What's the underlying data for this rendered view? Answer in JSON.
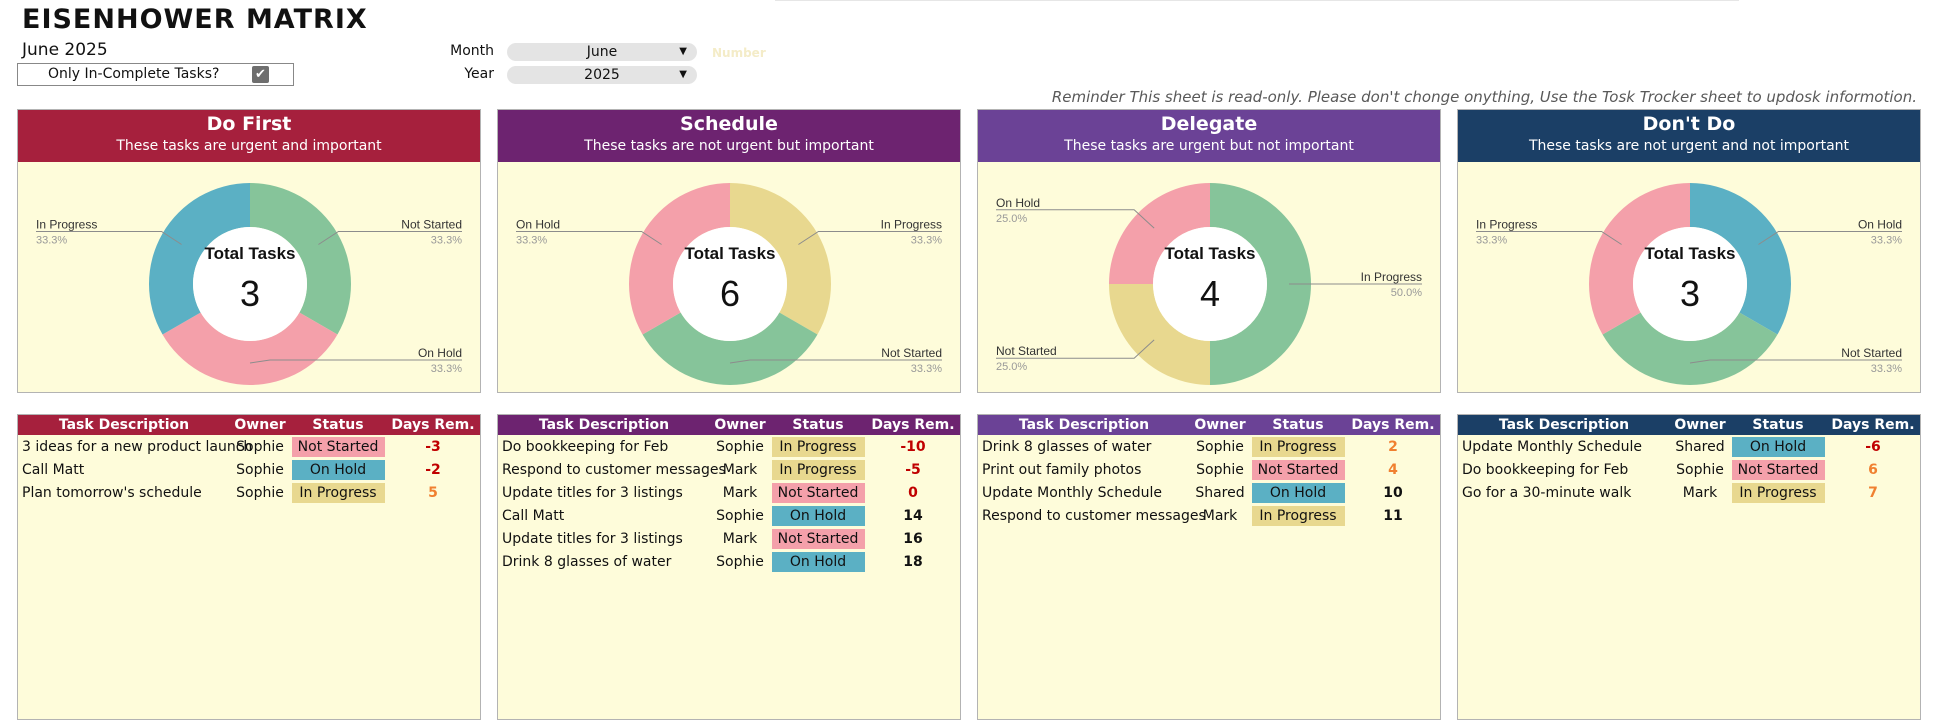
{
  "header": {
    "title": "EISENHOWER MATRIX",
    "subtitle": "June 2025",
    "toggle_label": "Only In-Complete Tasks?",
    "toggle_checked": true,
    "month_label": "Month",
    "month_value": "June",
    "year_label": "Year",
    "year_value": "2025",
    "faint_text": "Number",
    "reminder": "Reminder This sheet is read-only. Please don't chonge onything, Use the Tosk Trocker sheet to updosk informotion."
  },
  "status_colors": {
    "Not Started": "#f4a0aa",
    "On Hold": "#5bb0c4",
    "In Progress": "#e8d88f"
  },
  "chart_status_colors": {
    "Not Started": "#86c49a",
    "On Hold": "#f4a0aa",
    "In Progress": "#5bb0c4"
  },
  "days_colors": {
    "negative": "#c00000",
    "small": "#f08030",
    "large": "#111111"
  },
  "table_headers": {
    "desc": "Task Description",
    "owner": "Owner",
    "status": "Status",
    "days": "Days Rem."
  },
  "quadrants": [
    {
      "name": "Do First",
      "desc": "These tasks are urgent and important",
      "color": "#a6203d",
      "total_label": "Total Tasks",
      "total": "3",
      "chart_data": {
        "type": "pie",
        "slices": [
          {
            "label": "Not Started",
            "value": 33.3,
            "pct": "33.3%",
            "color": "#86c49a"
          },
          {
            "label": "On Hold",
            "value": 33.3,
            "pct": "33.3%",
            "color": "#f4a0aa"
          },
          {
            "label": "In Progress",
            "value": 33.3,
            "pct": "33.3%",
            "color": "#5bb0c4"
          }
        ]
      },
      "tasks": [
        {
          "desc": "3 ideas for a new product launch",
          "owner": "Sophie",
          "status": "Not Started",
          "days": "-3"
        },
        {
          "desc": "Call Matt",
          "owner": "Sophie",
          "status": "On Hold",
          "days": "-2"
        },
        {
          "desc": "Plan tomorrow's schedule",
          "owner": "Sophie",
          "status": "In Progress",
          "days": "5"
        }
      ]
    },
    {
      "name": "Schedule",
      "desc": "These tasks are not urgent but important",
      "color": "#6d2370",
      "total_label": "Total Tasks",
      "total": "6",
      "chart_data": {
        "type": "pie",
        "slices": [
          {
            "label": "In Progress",
            "value": 33.3,
            "pct": "33.3%",
            "color": "#e8d88f"
          },
          {
            "label": "Not Started",
            "value": 33.3,
            "pct": "33.3%",
            "color": "#86c49a"
          },
          {
            "label": "On Hold",
            "value": 33.3,
            "pct": "33.3%",
            "color": "#f4a0aa"
          }
        ]
      },
      "tasks": [
        {
          "desc": "Do bookkeeping for Feb",
          "owner": "Sophie",
          "status": "In Progress",
          "days": "-10"
        },
        {
          "desc": "Respond to customer messages",
          "owner": "Mark",
          "status": "In Progress",
          "days": "-5"
        },
        {
          "desc": "Update titles for 3 listings",
          "owner": "Mark",
          "status": "Not Started",
          "days": "0"
        },
        {
          "desc": "Call Matt",
          "owner": "Sophie",
          "status": "On Hold",
          "days": "14"
        },
        {
          "desc": "Update titles for 3 listings",
          "owner": "Mark",
          "status": "Not Started",
          "days": "16"
        },
        {
          "desc": "Drink 8 glasses of water",
          "owner": "Sophie",
          "status": "On Hold",
          "days": "18"
        }
      ]
    },
    {
      "name": "Delegate",
      "desc": "These tasks are urgent but not important",
      "color": "#6b4296",
      "total_label": "Total Tasks",
      "total": "4",
      "chart_data": {
        "type": "pie",
        "slices": [
          {
            "label": "In Progress",
            "value": 50.0,
            "pct": "50.0%",
            "color": "#86c49a"
          },
          {
            "label": "Not Started",
            "value": 25.0,
            "pct": "25.0%",
            "color": "#e8d88f"
          },
          {
            "label": "On Hold",
            "value": 25.0,
            "pct": "25.0%",
            "color": "#f4a0aa"
          }
        ]
      },
      "tasks": [
        {
          "desc": "Drink 8 glasses of water",
          "owner": "Sophie",
          "status": "In Progress",
          "days": "2"
        },
        {
          "desc": "Print out family photos",
          "owner": "Sophie",
          "status": "Not Started",
          "days": "4"
        },
        {
          "desc": "Update Monthly Schedule",
          "owner": "Shared",
          "status": "On Hold",
          "days": "10"
        },
        {
          "desc": "Respond to customer messages",
          "owner": "Mark",
          "status": "In Progress",
          "days": "11"
        }
      ]
    },
    {
      "name": "Don't Do",
      "desc": "These tasks are not urgent and not important",
      "color": "#1b3f66",
      "total_label": "Total Tasks",
      "total": "3",
      "chart_data": {
        "type": "pie",
        "slices": [
          {
            "label": "On Hold",
            "value": 33.3,
            "pct": "33.3%",
            "color": "#5bb0c4"
          },
          {
            "label": "Not Started",
            "value": 33.3,
            "pct": "33.3%",
            "color": "#86c49a"
          },
          {
            "label": "In Progress",
            "value": 33.3,
            "pct": "33.3%",
            "color": "#f4a0aa"
          }
        ]
      },
      "tasks": [
        {
          "desc": "Update Monthly Schedule",
          "owner": "Shared",
          "status": "On Hold",
          "days": "-6"
        },
        {
          "desc": "Do bookkeeping for Feb",
          "owner": "Sophie",
          "status": "Not Started",
          "days": "6"
        },
        {
          "desc": "Go for a 30-minute walk",
          "owner": "Mark",
          "status": "In Progress",
          "days": "7"
        }
      ]
    }
  ]
}
